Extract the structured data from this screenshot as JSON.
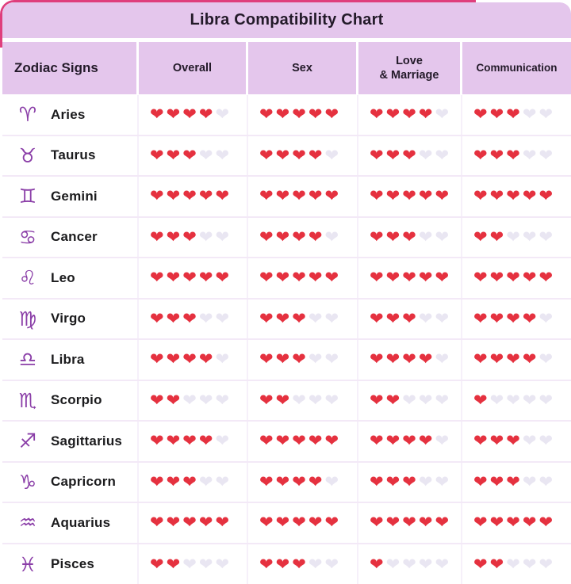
{
  "title": "Libra Compatibility Chart",
  "header": {
    "zodiac_signs": "Zodiac Signs",
    "overall": "Overall",
    "sex": "Sex",
    "love_marriage_lines": [
      "Love",
      "& Marriage"
    ],
    "communication": "Communication"
  },
  "icons": {
    "heart": "❤"
  },
  "colors": {
    "lavender": "#e4c6ec",
    "heart_red": "#e5313f",
    "heart_empty": "#e9e6f2",
    "zodiac_purple": "#8b3fa8",
    "text_dark": "#231a29",
    "row_divider": "#f3e9f7",
    "magenta_edge": "#df3e7c",
    "card_bg": "#ffffff"
  },
  "chart_data": {
    "type": "table",
    "title": "Libra Compatibility Chart",
    "columns": [
      "Zodiac Signs",
      "Overall",
      "Sex",
      "Love & Marriage",
      "Communication"
    ],
    "max_rating": 5,
    "rating_unit": "hearts",
    "rating_keys": [
      "overall",
      "sex",
      "love_marriage",
      "communication"
    ],
    "rows": [
      {
        "sign": "Aries",
        "symbol": "♈",
        "ratings": {
          "overall": 4,
          "sex": 5,
          "love_marriage": 4,
          "communication": 3
        }
      },
      {
        "sign": "Taurus",
        "symbol": "♉",
        "ratings": {
          "overall": 3,
          "sex": 4,
          "love_marriage": 3,
          "communication": 3
        }
      },
      {
        "sign": "Gemini",
        "symbol": "♊",
        "ratings": {
          "overall": 5,
          "sex": 5,
          "love_marriage": 5,
          "communication": 5
        }
      },
      {
        "sign": "Cancer",
        "symbol": "♋",
        "ratings": {
          "overall": 3,
          "sex": 4,
          "love_marriage": 3,
          "communication": 2
        }
      },
      {
        "sign": "Leo",
        "symbol": "♌",
        "ratings": {
          "overall": 5,
          "sex": 5,
          "love_marriage": 5,
          "communication": 5
        }
      },
      {
        "sign": "Virgo",
        "symbol": "♍",
        "ratings": {
          "overall": 3,
          "sex": 3,
          "love_marriage": 3,
          "communication": 4
        }
      },
      {
        "sign": "Libra",
        "symbol": "♎",
        "ratings": {
          "overall": 4,
          "sex": 3,
          "love_marriage": 4,
          "communication": 4
        }
      },
      {
        "sign": "Scorpio",
        "symbol": "♏",
        "ratings": {
          "overall": 2,
          "sex": 2,
          "love_marriage": 2,
          "communication": 1
        }
      },
      {
        "sign": "Sagittarius",
        "symbol": "♐",
        "ratings": {
          "overall": 4,
          "sex": 5,
          "love_marriage": 4,
          "communication": 3
        }
      },
      {
        "sign": "Capricorn",
        "symbol": "♑",
        "ratings": {
          "overall": 3,
          "sex": 4,
          "love_marriage": 3,
          "communication": 3
        }
      },
      {
        "sign": "Aquarius",
        "symbol": "♒",
        "ratings": {
          "overall": 5,
          "sex": 5,
          "love_marriage": 5,
          "communication": 5
        }
      },
      {
        "sign": "Pisces",
        "symbol": "♓",
        "ratings": {
          "overall": 2,
          "sex": 3,
          "love_marriage": 1,
          "communication": 2
        }
      }
    ]
  }
}
